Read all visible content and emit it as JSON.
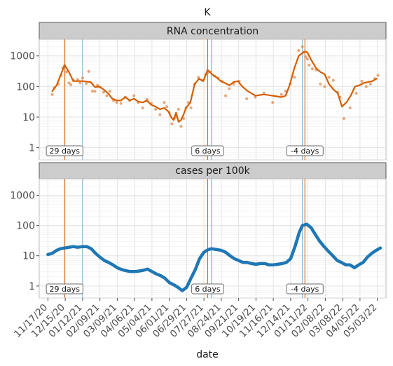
{
  "chart_data": {
    "type": "line",
    "title": "K",
    "xlabel": "date",
    "x_tick_labels": [
      "11/17/20",
      "12/15/20",
      "01/12/21",
      "02/09/21",
      "03/09/21",
      "04/06/21",
      "05/04/21",
      "06/01/21",
      "06/29/21",
      "07/27/21",
      "08/24/21",
      "09/21/21",
      "10/19/21",
      "11/16/21",
      "12/14/21",
      "01/11/22",
      "02/08/22",
      "03/08/22",
      "04/05/22",
      "05/03/22"
    ],
    "xlim": [
      "2020-11-03",
      "2022-05-17"
    ],
    "y_scale": "log",
    "ylim": [
      0.4,
      3500
    ],
    "y_ticks": [
      1,
      10,
      100,
      1000
    ],
    "y_tick_labels": [
      "1",
      "10",
      "100",
      "1000"
    ],
    "grid": true,
    "markers": {
      "peak_lines": {
        "color": "#d55e00",
        "dates": [
          "2020-12-14",
          "2021-08-02",
          "2022-01-06"
        ]
      },
      "case_peak_lines": {
        "color": "#6aaed6",
        "dates": [
          "2021-01-12",
          "2021-08-08",
          "2022-01-02"
        ]
      }
    },
    "lag_labels": [
      {
        "date": "2020-12-14",
        "text": "29 days"
      },
      {
        "date": "2021-08-02",
        "text": "6 days"
      },
      {
        "date": "2022-01-06",
        "text": "-4 days"
      }
    ],
    "panels": [
      {
        "name": "RNA concentration",
        "series": [
          {
            "type": "points",
            "color": "#e0915a",
            "x": [
              "2020-11-24",
              "2020-11-27",
              "2020-12-04",
              "2020-12-08",
              "2020-12-11",
              "2020-12-14",
              "2020-12-17",
              "2020-12-21",
              "2020-12-24",
              "2020-12-28",
              "2021-01-04",
              "2021-01-08",
              "2021-01-12",
              "2021-01-18",
              "2021-01-22",
              "2021-01-28",
              "2021-02-01",
              "2021-02-05",
              "2021-02-09",
              "2021-02-15",
              "2021-02-20",
              "2021-02-25",
              "2021-03-03",
              "2021-03-08",
              "2021-03-15",
              "2021-03-22",
              "2021-03-29",
              "2021-04-05",
              "2021-04-12",
              "2021-04-19",
              "2021-04-26",
              "2021-05-03",
              "2021-05-10",
              "2021-05-17",
              "2021-05-24",
              "2021-05-28",
              "2021-06-01",
              "2021-06-05",
              "2021-06-09",
              "2021-06-12",
              "2021-06-16",
              "2021-06-20",
              "2021-06-24",
              "2021-06-28",
              "2021-07-02",
              "2021-07-06",
              "2021-07-12",
              "2021-07-18",
              "2021-07-24",
              "2021-07-30",
              "2021-08-02",
              "2021-08-07",
              "2021-08-13",
              "2021-08-19",
              "2021-08-25",
              "2021-08-31",
              "2021-09-06",
              "2021-09-13",
              "2021-09-22",
              "2021-10-04",
              "2021-10-18",
              "2021-11-01",
              "2021-11-15",
              "2021-11-29",
              "2021-12-06",
              "2021-12-13",
              "2021-12-20",
              "2021-12-27",
              "2022-01-02",
              "2022-01-04",
              "2022-01-07",
              "2022-01-10",
              "2022-01-13",
              "2022-01-18",
              "2022-01-24",
              "2022-01-31",
              "2022-02-07",
              "2022-02-14",
              "2022-02-21",
              "2022-02-28",
              "2022-03-04",
              "2022-03-10",
              "2022-03-20",
              "2022-03-30",
              "2022-04-08",
              "2022-04-15",
              "2022-04-22",
              "2022-04-29",
              "2022-05-04"
            ],
            "y": [
              55,
              90,
              120,
              230,
              410,
              480,
              300,
              130,
              115,
              165,
              170,
              130,
              190,
              125,
              310,
              70,
              70,
              110,
              95,
              65,
              50,
              70,
              35,
              30,
              28,
              45,
              35,
              50,
              30,
              20,
              38,
              28,
              18,
              12,
              30,
              22,
              14,
              6,
              9,
              10,
              18,
              5,
              9,
              20,
              30,
              20,
              120,
              200,
              160,
              250,
              280,
              300,
              220,
              190,
              150,
              50,
              85,
              120,
              150,
              40,
              45,
              60,
              30,
              55,
              70,
              120,
              200,
              1500,
              2000,
              1300,
              950,
              800,
              500,
              380,
              350,
              120,
              100,
              200,
              160,
              65,
              45,
              9,
              20,
              60,
              150,
              100,
              120,
              180,
              230
            ]
          },
          {
            "type": "line",
            "color": "#d55e00",
            "x": [
              "2020-11-24",
              "2020-12-01",
              "2020-12-07",
              "2020-12-14",
              "2020-12-21",
              "2020-12-28",
              "2021-01-04",
              "2021-01-12",
              "2021-01-18",
              "2021-01-25",
              "2021-02-01",
              "2021-02-08",
              "2021-02-15",
              "2021-02-22",
              "2021-03-01",
              "2021-03-08",
              "2021-03-15",
              "2021-03-22",
              "2021-03-29",
              "2021-04-05",
              "2021-04-12",
              "2021-04-19",
              "2021-04-26",
              "2021-05-03",
              "2021-05-10",
              "2021-05-17",
              "2021-05-24",
              "2021-05-31",
              "2021-06-04",
              "2021-06-08",
              "2021-06-12",
              "2021-06-16",
              "2021-06-20",
              "2021-06-24",
              "2021-06-28",
              "2021-07-05",
              "2021-07-12",
              "2021-07-19",
              "2021-07-26",
              "2021-08-02",
              "2021-08-09",
              "2021-08-16",
              "2021-08-23",
              "2021-08-30",
              "2021-09-06",
              "2021-09-13",
              "2021-09-20",
              "2021-09-27",
              "2021-10-04",
              "2021-10-18",
              "2021-11-01",
              "2021-11-15",
              "2021-11-29",
              "2021-12-06",
              "2021-12-13",
              "2021-12-20",
              "2021-12-27",
              "2022-01-03",
              "2022-01-06",
              "2022-01-10",
              "2022-01-17",
              "2022-01-24",
              "2022-01-31",
              "2022-02-07",
              "2022-02-14",
              "2022-02-21",
              "2022-02-28",
              "2022-03-07",
              "2022-03-14",
              "2022-03-21",
              "2022-03-28",
              "2022-04-04",
              "2022-04-11",
              "2022-04-18",
              "2022-04-25",
              "2022-05-02"
            ],
            "y": [
              70,
              110,
              220,
              500,
              300,
              150,
              150,
              150,
              145,
              140,
              95,
              100,
              80,
              60,
              40,
              35,
              35,
              45,
              35,
              40,
              32,
              30,
              35,
              25,
              22,
              18,
              20,
              15,
              10,
              8,
              14,
              7,
              8,
              12,
              20,
              30,
              120,
              180,
              150,
              350,
              250,
              200,
              150,
              130,
              110,
              140,
              150,
              100,
              75,
              50,
              55,
              50,
              45,
              50,
              120,
              400,
              1000,
              1300,
              1400,
              1300,
              700,
              400,
              300,
              250,
              120,
              80,
              60,
              22,
              30,
              50,
              100,
              110,
              130,
              140,
              150,
              180
            ]
          }
        ]
      },
      {
        "name": "cases per 100k",
        "series": [
          {
            "type": "line",
            "color": "#1f77b4",
            "x": [
              "2020-11-17",
              "2020-11-24",
              "2020-12-01",
              "2020-12-07",
              "2020-12-14",
              "2020-12-21",
              "2020-12-28",
              "2021-01-04",
              "2021-01-12",
              "2021-01-19",
              "2021-01-26",
              "2021-02-02",
              "2021-02-09",
              "2021-02-16",
              "2021-02-23",
              "2021-03-02",
              "2021-03-09",
              "2021-03-16",
              "2021-03-23",
              "2021-03-30",
              "2021-04-06",
              "2021-04-13",
              "2021-04-20",
              "2021-04-27",
              "2021-05-04",
              "2021-05-11",
              "2021-05-18",
              "2021-05-25",
              "2021-06-01",
              "2021-06-08",
              "2021-06-15",
              "2021-06-22",
              "2021-06-29",
              "2021-07-06",
              "2021-07-13",
              "2021-07-20",
              "2021-07-27",
              "2021-08-03",
              "2021-08-08",
              "2021-08-17",
              "2021-08-24",
              "2021-08-31",
              "2021-09-07",
              "2021-09-14",
              "2021-09-21",
              "2021-09-28",
              "2021-10-05",
              "2021-10-12",
              "2021-10-19",
              "2021-10-26",
              "2021-11-02",
              "2021-11-09",
              "2021-11-16",
              "2021-11-23",
              "2021-11-30",
              "2021-12-07",
              "2021-12-14",
              "2021-12-21",
              "2021-12-28",
              "2022-01-02",
              "2022-01-09",
              "2022-01-16",
              "2022-01-23",
              "2022-01-30",
              "2022-02-06",
              "2022-02-13",
              "2022-02-20",
              "2022-02-27",
              "2022-03-06",
              "2022-03-13",
              "2022-03-20",
              "2022-03-27",
              "2022-04-03",
              "2022-04-10",
              "2022-04-17",
              "2022-04-24",
              "2022-05-01",
              "2022-05-08"
            ],
            "y": [
              11,
              12,
              15,
              17,
              18,
              19,
              20,
              19,
              20,
              20,
              17,
              12,
              9,
              7,
              6,
              5,
              4,
              3.5,
              3.2,
              3.0,
              3.0,
              3.1,
              3.3,
              3.6,
              3.0,
              2.5,
              2.2,
              1.8,
              1.3,
              1.1,
              0.9,
              0.7,
              0.9,
              1.8,
              3.5,
              8,
              13,
              16,
              17,
              16,
              15,
              13,
              10,
              8,
              7,
              6,
              6,
              5.5,
              5.2,
              5.5,
              5.5,
              5.0,
              5.0,
              5.2,
              5.5,
              6,
              8,
              20,
              60,
              100,
              110,
              85,
              50,
              30,
              20,
              14,
              10,
              7,
              6,
              5,
              5,
              4,
              5,
              6,
              9,
              12,
              15,
              18
            ]
          }
        ]
      }
    ]
  }
}
